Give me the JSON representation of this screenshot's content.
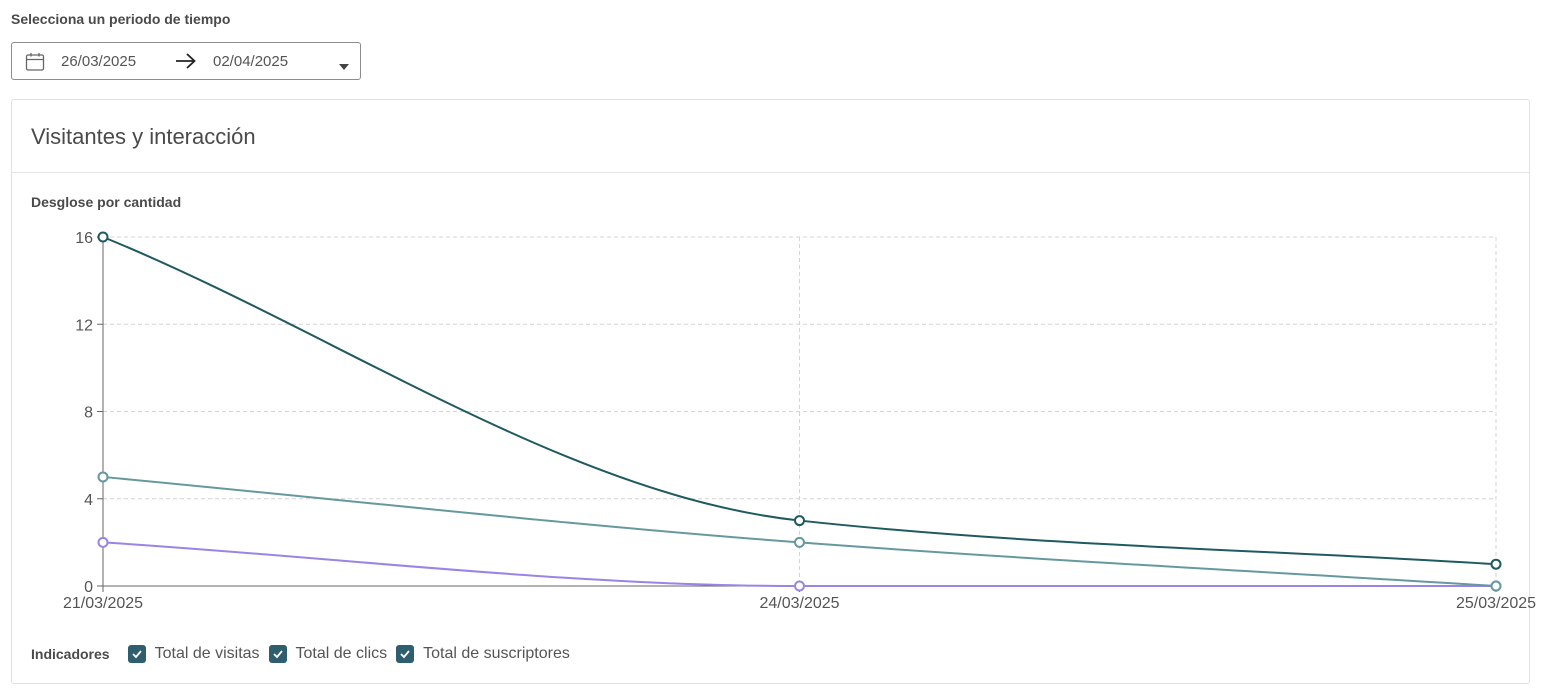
{
  "period": {
    "label": "Selecciona un periodo de tiempo",
    "start_date": "26/03/2025",
    "end_date": "02/04/2025"
  },
  "card": {
    "title": "Visitantes y interacción",
    "subtitle": "Desglose por cantidad"
  },
  "legend": {
    "title": "Indicadores",
    "items": [
      {
        "label": "Total de visitas",
        "checked": true
      },
      {
        "label": "Total de clics",
        "checked": true
      },
      {
        "label": "Total de suscriptores",
        "checked": true
      }
    ]
  },
  "colors": {
    "checkbox": "#2f5f6e",
    "grid": "#d4d4d4",
    "axis": "#666666"
  },
  "chart_data": {
    "type": "line",
    "x": [
      "21/03/2025",
      "24/03/2025",
      "25/03/2025"
    ],
    "ylim": [
      0,
      16
    ],
    "yticks": [
      0,
      4,
      8,
      12,
      16
    ],
    "grid": true,
    "series": [
      {
        "name": "Total de visitas",
        "values": [
          16,
          3,
          1
        ],
        "color": "#1f5a60"
      },
      {
        "name": "Total de clics",
        "values": [
          5,
          2,
          0
        ],
        "color": "#66999f"
      },
      {
        "name": "Total de suscriptores",
        "values": [
          2,
          0,
          0
        ],
        "color": "#9a84e6"
      }
    ]
  }
}
